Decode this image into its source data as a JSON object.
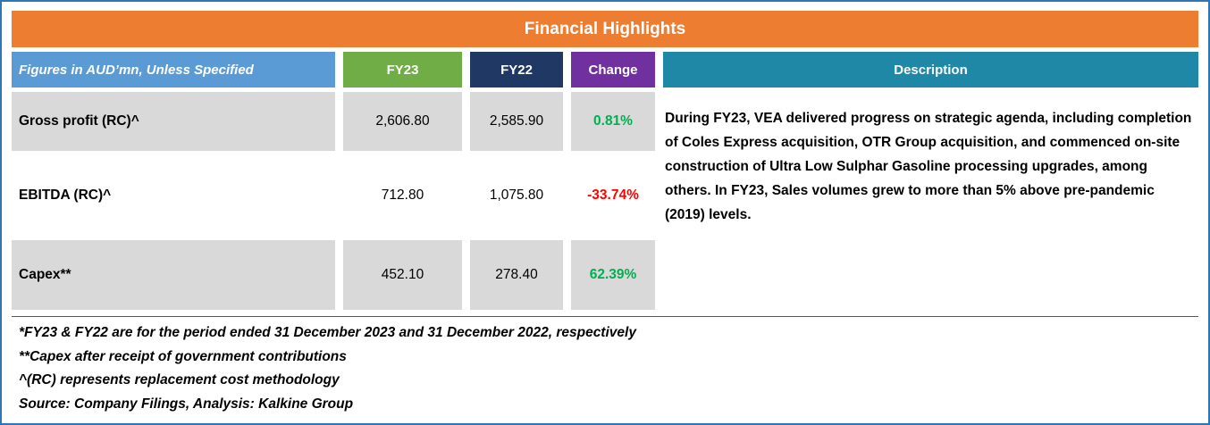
{
  "title": "Financial Highlights",
  "header": {
    "label": "Figures in AUD’mn, Unless Specified",
    "fy23": "FY23",
    "fy22": "FY22",
    "change": "Change",
    "description": "Description"
  },
  "rows": [
    {
      "label": "Gross profit (RC)^",
      "fy23": "2,606.80",
      "fy22": "2,585.90",
      "change": "0.81%",
      "change_direction": "positive"
    },
    {
      "label": "EBITDA (RC)^",
      "fy23": "712.80",
      "fy22": "1,075.80",
      "change": "-33.74%",
      "change_direction": "negative"
    },
    {
      "label": "Capex**",
      "fy23": "452.10",
      "fy22": "278.40",
      "change": "62.39%",
      "change_direction": "positive"
    }
  ],
  "description": "During FY23, VEA delivered progress on strategic agenda, including completion of Coles Express acquisition, OTR Group acquisition, and commenced on-site construction of Ultra Low Sulphar Gasoline processing upgrades, among others. In FY23, Sales volumes grew to more than 5% above pre-pandemic (2019) levels.",
  "footnotes": [
    "*FY23 & FY22 are for the period ended 31 December 2023 and 31 December 2022, respectively",
    "**Capex after receipt of government contributions",
    "^(RC) represents replacement cost methodology",
    "Source: Company Filings, Analysis: Kalkine Group"
  ],
  "colors": {
    "title_bg": "#ED7D31",
    "label_header_bg": "#5B9BD5",
    "fy23_header_bg": "#70AD47",
    "fy22_header_bg": "#1F3864",
    "change_header_bg": "#7030A0",
    "description_header_bg": "#1E88A6",
    "row_alt_bg": "#D9D9D9",
    "positive_change": "#00B050",
    "negative_change": "#FF0000",
    "outer_border": "#2E75B6"
  }
}
